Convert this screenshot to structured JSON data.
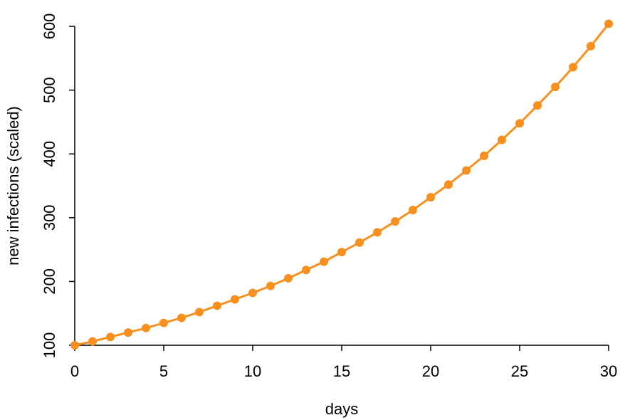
{
  "chart_data": {
    "type": "line",
    "x_label": "days",
    "y_label": "new infections (scaled)",
    "x": [
      0,
      1,
      2,
      3,
      4,
      5,
      6,
      7,
      8,
      9,
      10,
      11,
      12,
      13,
      14,
      15,
      16,
      17,
      18,
      19,
      20,
      21,
      22,
      23,
      24,
      25,
      26,
      27,
      28,
      29,
      30
    ],
    "series": [
      {
        "color": "#f7901e",
        "values": [
          100,
          106,
          113,
          120,
          127,
          135,
          143,
          152,
          162,
          172,
          182,
          193,
          205,
          218,
          231,
          246,
          261,
          277,
          294,
          312,
          332,
          352,
          374,
          397,
          422,
          448,
          476,
          505,
          536,
          569,
          604
        ]
      }
    ],
    "xlim": [
      0,
      30
    ],
    "xticks": [
      0,
      5,
      10,
      15,
      20,
      25,
      30
    ],
    "ylim": [
      100,
      600
    ],
    "yticks": [
      100,
      200,
      300,
      400,
      500,
      600
    ]
  }
}
